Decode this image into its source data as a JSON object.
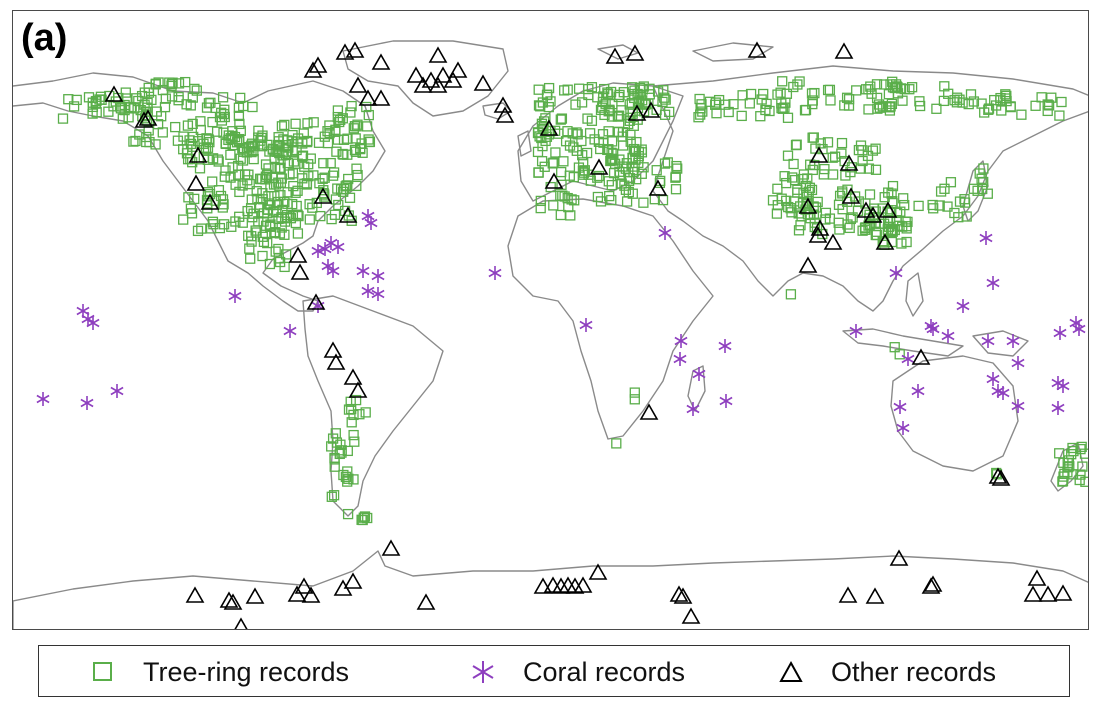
{
  "panel_label": "(a)",
  "legend": {
    "tree_ring": "Tree-ring records",
    "coral": "Coral records",
    "other": "Other records"
  },
  "colors": {
    "tree_ring": "#5aae4a",
    "coral": "#8e3fbf",
    "other": "#000000",
    "coastline": "#8a8a8a"
  },
  "symbols": {
    "tree_ring": "open-square",
    "coral": "asterisk",
    "other": "open-triangle"
  }
}
